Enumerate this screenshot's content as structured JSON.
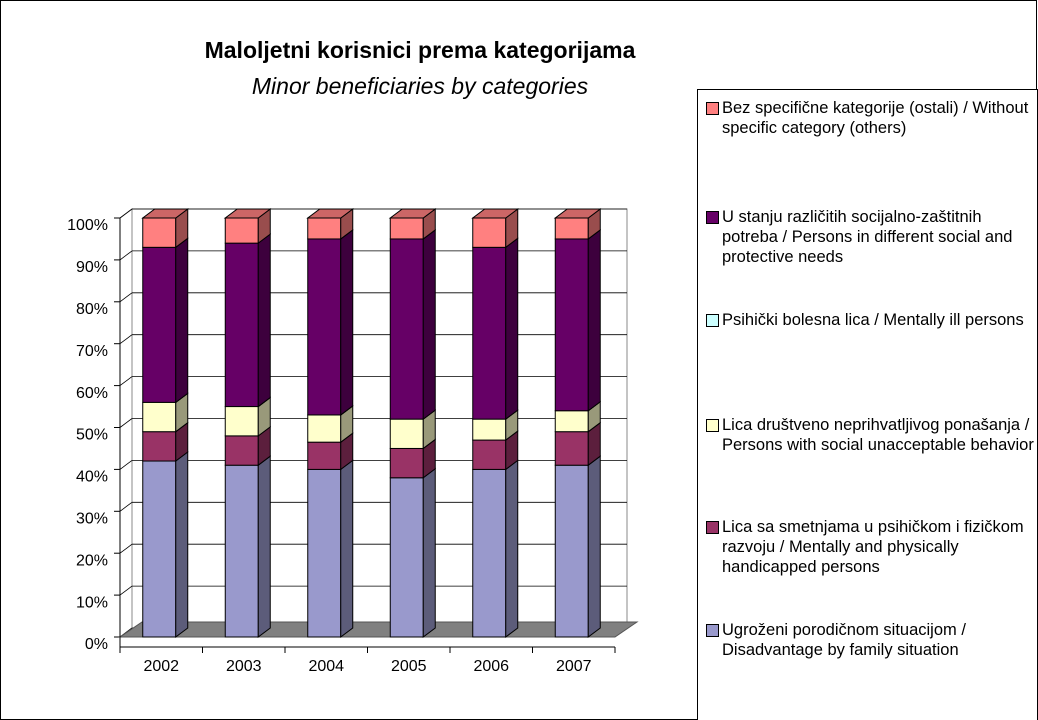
{
  "chart_data": {
    "type": "bar3d_stacked",
    "title": "Maloljetni korisnici prema kategorijama",
    "subtitle": "Minor beneficiaries by categories",
    "categories": [
      "2002",
      "2003",
      "2004",
      "2005",
      "2006",
      "2007"
    ],
    "series": [
      {
        "name": "Ugroženi porodičnom situacijom / Disadvantage by family situation",
        "color": "#9999cc",
        "values": [
          42,
          41,
          40,
          38,
          40,
          41
        ]
      },
      {
        "name": "Lica sa smetnjama u psihičkom i fizičkom razvoju / Mentally and physically handicapped persons",
        "color": "#993366",
        "values": [
          7,
          7,
          6.5,
          7,
          7,
          8
        ]
      },
      {
        "name": "Lica društveno neprihvatljivog ponašanja / Persons with social unacceptable behavior",
        "color": "#ffffcc",
        "values": [
          7,
          7,
          6.5,
          7,
          5,
          5
        ]
      },
      {
        "name": "Psihički bolesna lica / Mentally ill persons",
        "color": "#ccffff",
        "values": [
          0,
          0,
          0,
          0,
          0,
          0
        ]
      },
      {
        "name": "U stanju različitih socijalno-zaštitnih potreba / Persons in different social and protective needs",
        "color": "#660066",
        "values": [
          37,
          39,
          42,
          43,
          41,
          41
        ]
      },
      {
        "name": "Bez specifične kategorije (ostali) / Without specific category (others)",
        "color": "#ff8080",
        "values": [
          7,
          6,
          5,
          5,
          7,
          5
        ]
      }
    ],
    "ylim": [
      0,
      100
    ],
    "yticks": [
      {
        "value": 0,
        "label": "0%"
      },
      {
        "value": 10,
        "label": "10%"
      },
      {
        "value": 20,
        "label": "20%"
      },
      {
        "value": 30,
        "label": "30%"
      },
      {
        "value": 40,
        "label": "40%"
      },
      {
        "value": 50,
        "label": "50%"
      },
      {
        "value": 60,
        "label": "60%"
      },
      {
        "value": 70,
        "label": "70%"
      },
      {
        "value": 80,
        "label": "80%"
      },
      {
        "value": 90,
        "label": "90%"
      },
      {
        "value": 100,
        "label": "100%"
      }
    ],
    "grid": true
  }
}
